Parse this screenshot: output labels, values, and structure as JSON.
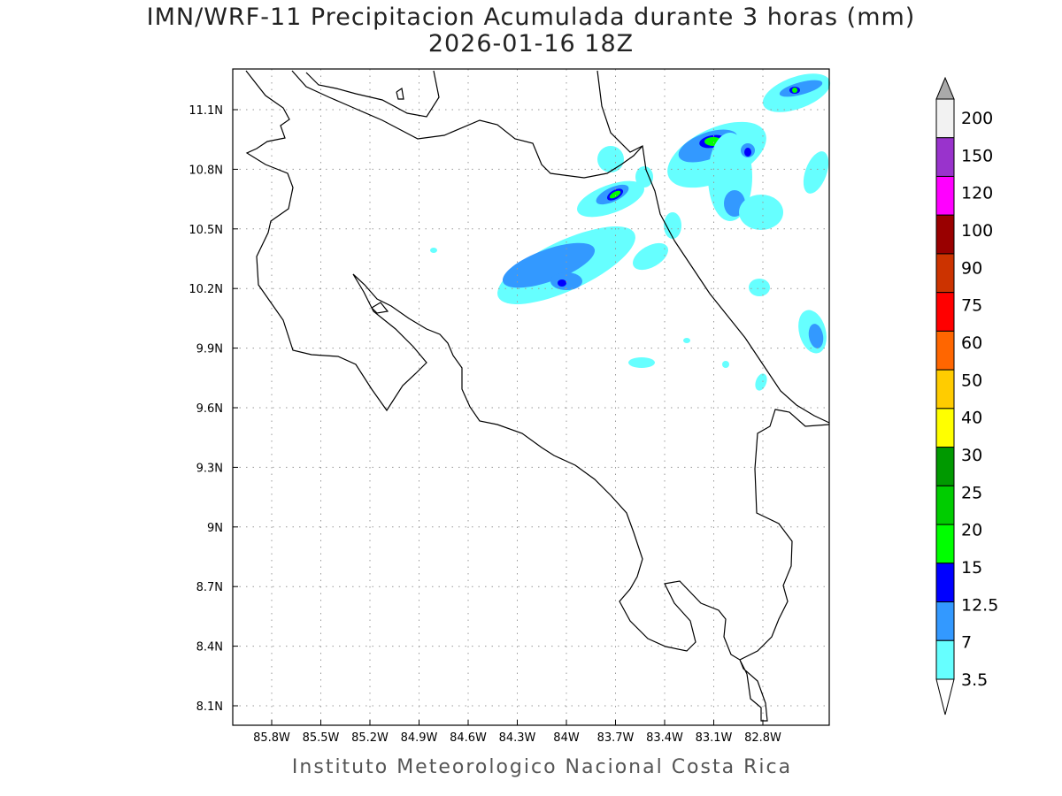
{
  "title": {
    "line1": "IMN/WRF-11 Precipitacion Acumulada durante 3 horas (mm)",
    "line2": "2026-01-16 18Z"
  },
  "footer": "Instituto Meteorologico Nacional Costa Rica",
  "map": {
    "lon_ticks": [
      "85.8W",
      "85.5W",
      "85.2W",
      "84.9W",
      "84.6W",
      "84.3W",
      "84W",
      "83.7W",
      "83.4W",
      "83.1W",
      "82.8W"
    ],
    "lat_ticks": [
      "11.1N",
      "10.8N",
      "10.5N",
      "10.2N",
      "9.9N",
      "9.6N",
      "9.3N",
      "9N",
      "8.7N",
      "8.4N",
      "8.1N"
    ],
    "grid": "dotted",
    "coast_color": "#000000"
  },
  "colorbar": {
    "labels": [
      "200",
      "150",
      "120",
      "100",
      "90",
      "75",
      "60",
      "50",
      "40",
      "30",
      "25",
      "20",
      "15",
      "12.5",
      "7",
      "3.5"
    ],
    "colors": [
      "#f2f2f2",
      "#9933cc",
      "#ff00ff",
      "#990000",
      "#cc3300",
      "#ff0000",
      "#ff6600",
      "#ffcc00",
      "#ffff00",
      "#009900",
      "#00cc00",
      "#00ff00",
      "#0000ff",
      "#3399ff",
      "#66ffff"
    ],
    "over_color": "#aaaaaa",
    "under_color": "#ffffff"
  }
}
